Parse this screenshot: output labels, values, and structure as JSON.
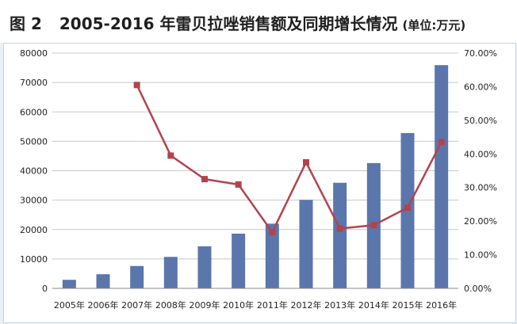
{
  "title": {
    "figure_no": "图 2",
    "text": "2005-2016 年雷贝拉唑销售额及同期增长情况",
    "unit": "(单位:万元)"
  },
  "colors": {
    "bar": "#5a76ac",
    "line": "#b3434d",
    "marker": "#b3434d",
    "grid": "#c8c8c8"
  },
  "chart_data": {
    "type": "bar",
    "categories": [
      "2005年",
      "2006年",
      "2007年",
      "2008年",
      "2009年",
      "2010年",
      "2011年",
      "2012年",
      "2013年",
      "2014年",
      "2015年",
      "2016年"
    ],
    "series": [
      {
        "axis": "left",
        "type": "bar",
        "values": [
          2900,
          4800,
          7600,
          10700,
          14300,
          18600,
          22000,
          30100,
          35900,
          42600,
          52800,
          75900
        ]
      },
      {
        "axis": "right",
        "type": "line",
        "values": [
          null,
          null,
          0.605,
          0.395,
          0.325,
          0.309,
          0.167,
          0.375,
          0.178,
          0.188,
          0.24,
          0.435
        ]
      }
    ],
    "y_left": {
      "ylim": [
        0,
        80000
      ],
      "ticks": [
        "0",
        "10000",
        "20000",
        "30000",
        "40000",
        "50000",
        "60000",
        "70000",
        "80000"
      ]
    },
    "y_right": {
      "ylim": [
        0,
        0.7
      ],
      "ticks": [
        "0.00%",
        "10.00%",
        "20.00%",
        "30.00%",
        "40.00%",
        "50.00%",
        "60.00%",
        "70.00%"
      ]
    },
    "grid": true,
    "legend": "none"
  }
}
